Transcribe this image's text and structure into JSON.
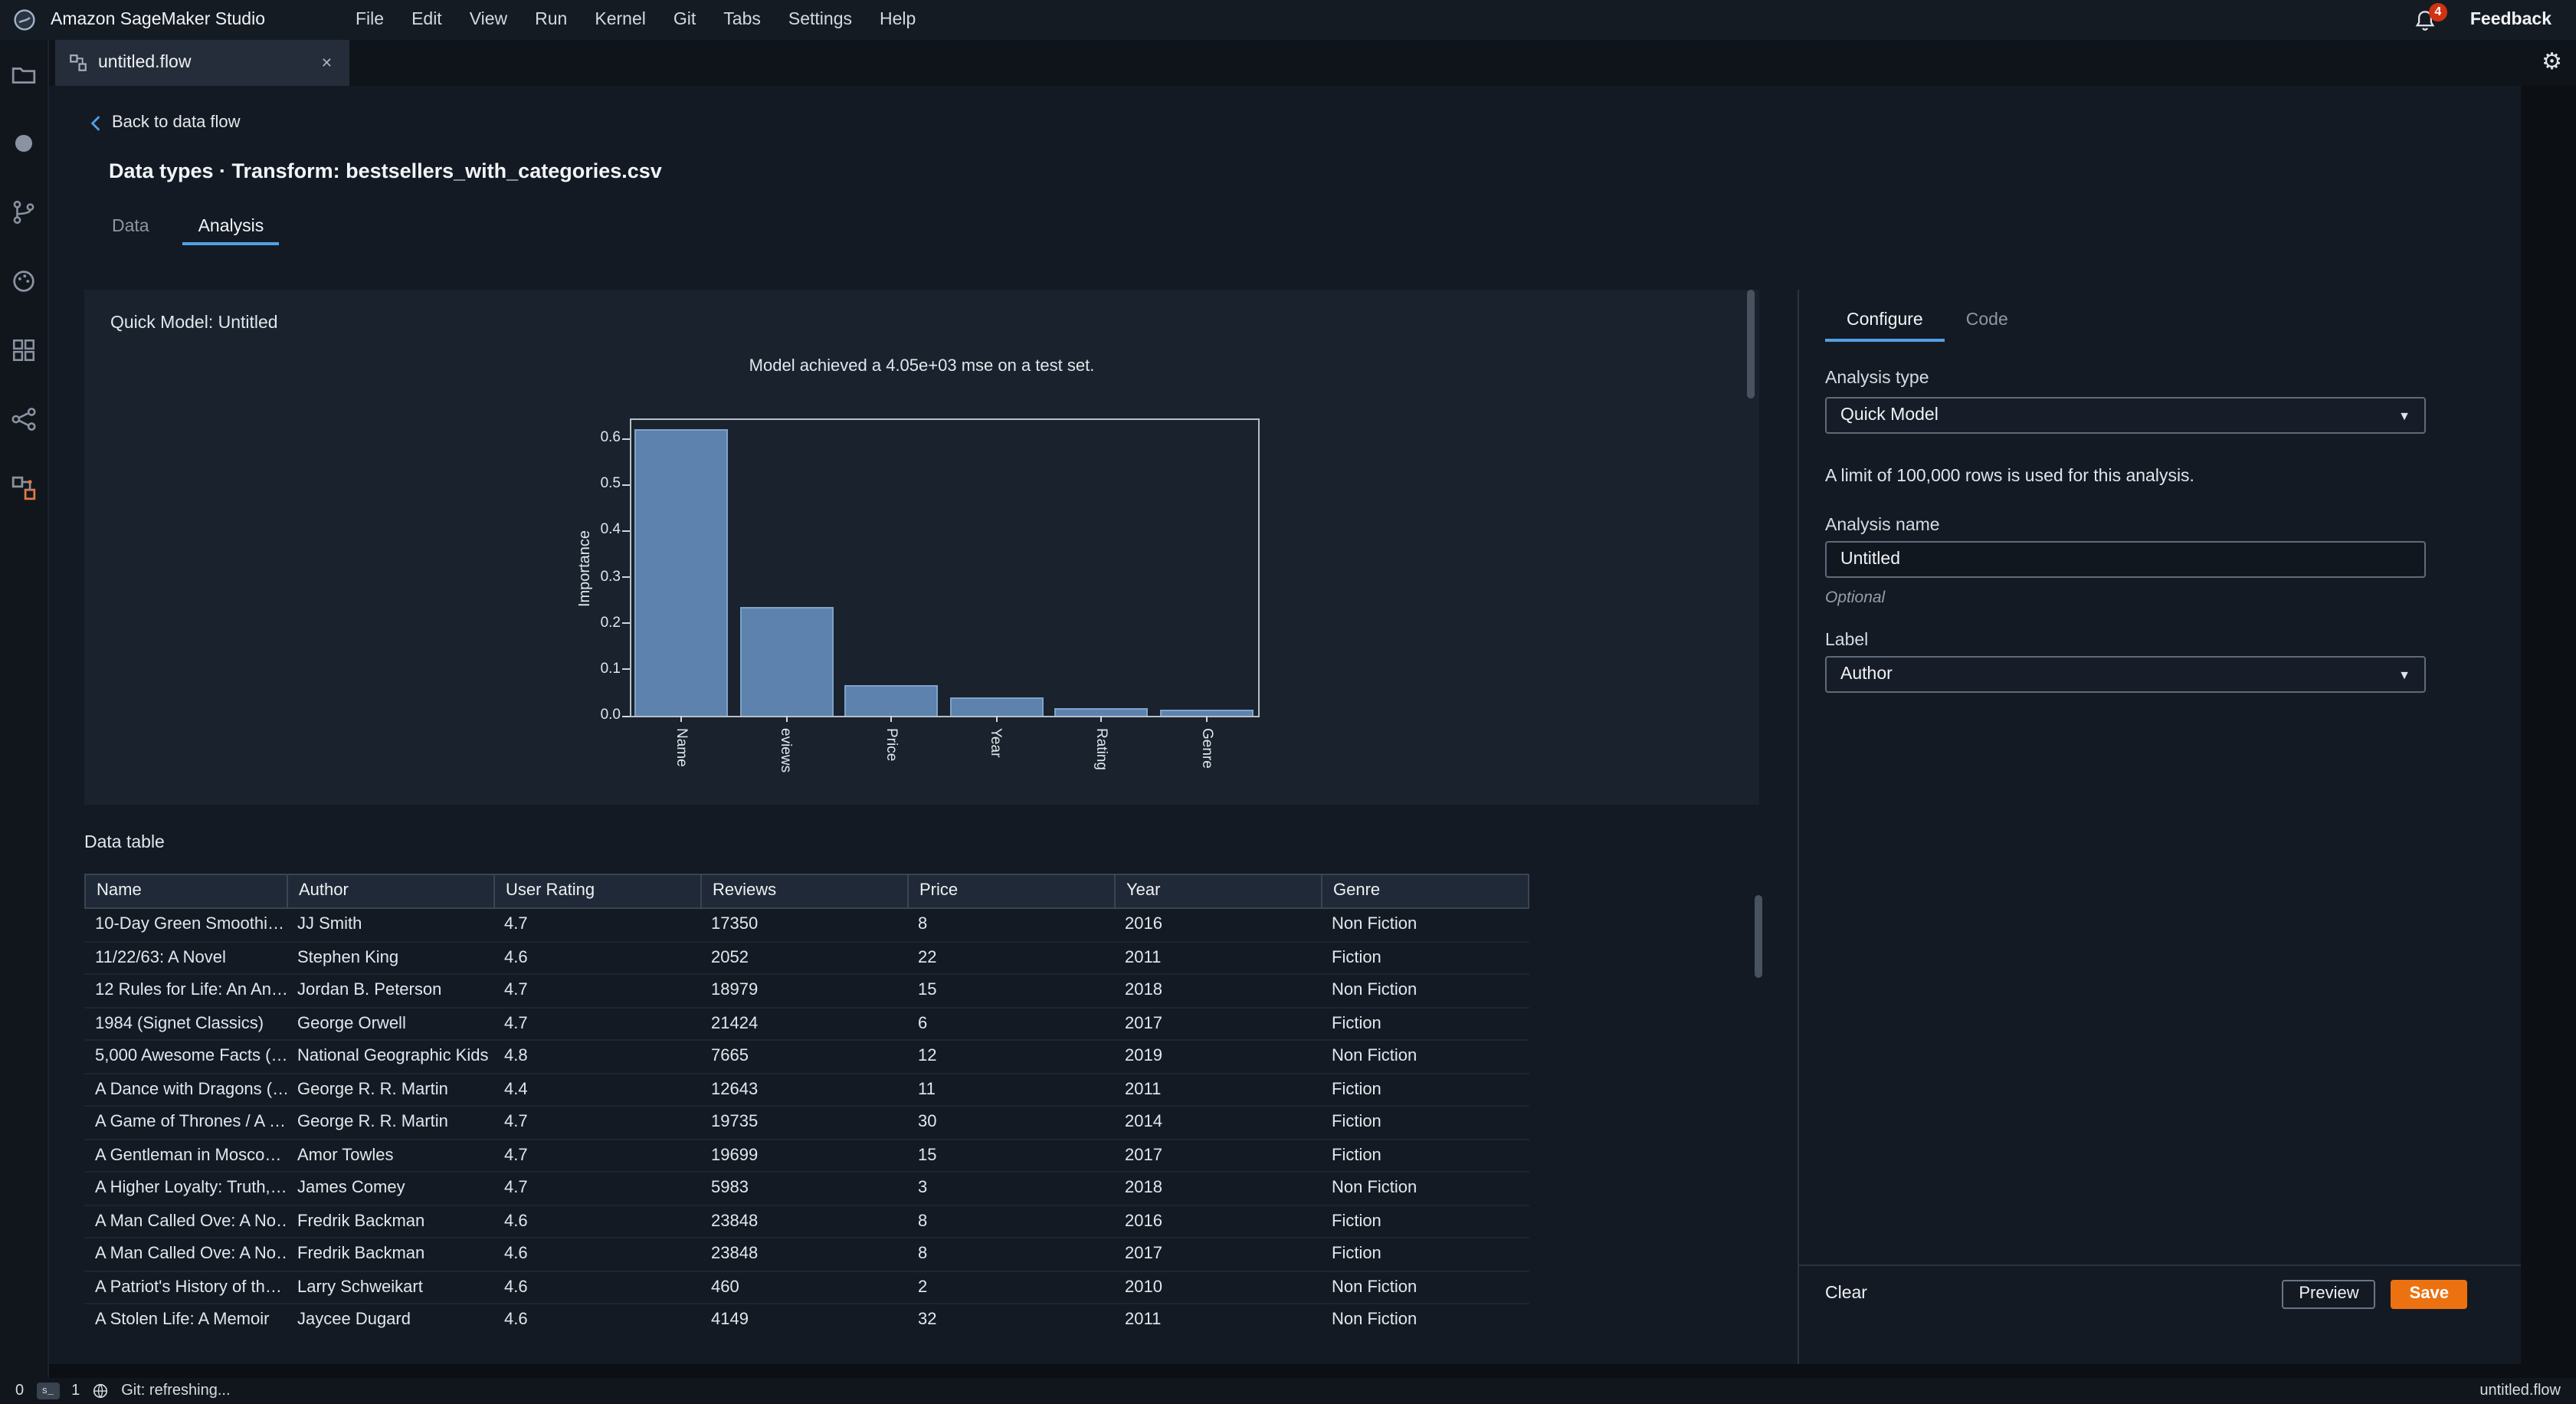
{
  "app": {
    "brand": "Amazon SageMaker Studio",
    "menus": [
      "File",
      "Edit",
      "View",
      "Run",
      "Kernel",
      "Git",
      "Tabs",
      "Settings",
      "Help"
    ],
    "notification_count": "4",
    "feedback_label": "Feedback"
  },
  "icons": {
    "caret_down": "▼",
    "close": "✕",
    "gear": "⚙",
    "terminal_glyph": "s_"
  },
  "tab_bar": {
    "tab_label": "untitled.flow"
  },
  "breadcrumb": {
    "back_label": "Back to data flow"
  },
  "page": {
    "title": "Data types · Transform: bestsellers_with_categories.csv"
  },
  "main_tabs": {
    "data": "Data",
    "analysis": "Analysis"
  },
  "chart_data": {
    "type": "bar",
    "title": "Quick Model: Untitled",
    "subtitle": "Model achieved a 4.05e+03 mse on a test set.",
    "categories": [
      "Name",
      "eviews",
      "Price",
      "Year",
      "Rating",
      "Genre"
    ],
    "values": [
      0.62,
      0.235,
      0.065,
      0.04,
      0.018,
      0.014
    ],
    "ylabel": "Importance",
    "xlabel": "",
    "ylim": [
      0,
      0.64
    ],
    "yticks": [
      0,
      0.1,
      0.2,
      0.3,
      0.4,
      0.5,
      0.6
    ],
    "grid": false,
    "legend": "none",
    "bar_color": "#5d82ae"
  },
  "data_table": {
    "section_label": "Data table",
    "columns": [
      "Name",
      "Author",
      "User Rating",
      "Reviews",
      "Price",
      "Year",
      "Genre"
    ],
    "rows": [
      [
        "10-Day Green Smoothi…",
        "JJ Smith",
        "4.7",
        "17350",
        "8",
        "2016",
        "Non Fiction"
      ],
      [
        "11/22/63: A Novel",
        "Stephen King",
        "4.6",
        "2052",
        "22",
        "2011",
        "Fiction"
      ],
      [
        "12 Rules for Life: An An…",
        "Jordan B. Peterson",
        "4.7",
        "18979",
        "15",
        "2018",
        "Non Fiction"
      ],
      [
        "1984 (Signet Classics)",
        "George Orwell",
        "4.7",
        "21424",
        "6",
        "2017",
        "Fiction"
      ],
      [
        "5,000 Awesome Facts (…",
        "National Geographic Kids",
        "4.8",
        "7665",
        "12",
        "2019",
        "Non Fiction"
      ],
      [
        "A Dance with Dragons (…",
        "George R. R. Martin",
        "4.4",
        "12643",
        "11",
        "2011",
        "Fiction"
      ],
      [
        "A Game of Thrones / A …",
        "George R. R. Martin",
        "4.7",
        "19735",
        "30",
        "2014",
        "Fiction"
      ],
      [
        "A Gentleman in Mosco…",
        "Amor Towles",
        "4.7",
        "19699",
        "15",
        "2017",
        "Fiction"
      ],
      [
        "A Higher Loyalty: Truth,…",
        "James Comey",
        "4.7",
        "5983",
        "3",
        "2018",
        "Non Fiction"
      ],
      [
        "A Man Called Ove: A No…",
        "Fredrik Backman",
        "4.6",
        "23848",
        "8",
        "2016",
        "Fiction"
      ],
      [
        "A Man Called Ove: A No…",
        "Fredrik Backman",
        "4.6",
        "23848",
        "8",
        "2017",
        "Fiction"
      ],
      [
        "A Patriot's History of th…",
        "Larry Schweikart",
        "4.6",
        "460",
        "2",
        "2010",
        "Non Fiction"
      ],
      [
        "A Stolen Life: A Memoir",
        "Jaycee Dugard",
        "4.6",
        "4149",
        "32",
        "2011",
        "Non Fiction"
      ]
    ]
  },
  "config_panel": {
    "tabs": {
      "configure": "Configure",
      "code": "Code"
    },
    "analysis_type_label": "Analysis type",
    "analysis_type_value": "Quick Model",
    "limit_note": "A limit of 100,000 rows is used for this analysis.",
    "analysis_name_label": "Analysis name",
    "analysis_name_value": "Untitled",
    "optional_label": "Optional",
    "label_label": "Label",
    "label_value": "Author",
    "clear_label": "Clear",
    "preview_label": "Preview",
    "save_label": "Save"
  },
  "status_bar": {
    "left_count": "0",
    "right_count": "1",
    "git_status": "Git: refreshing...",
    "file_label": "untitled.flow"
  }
}
